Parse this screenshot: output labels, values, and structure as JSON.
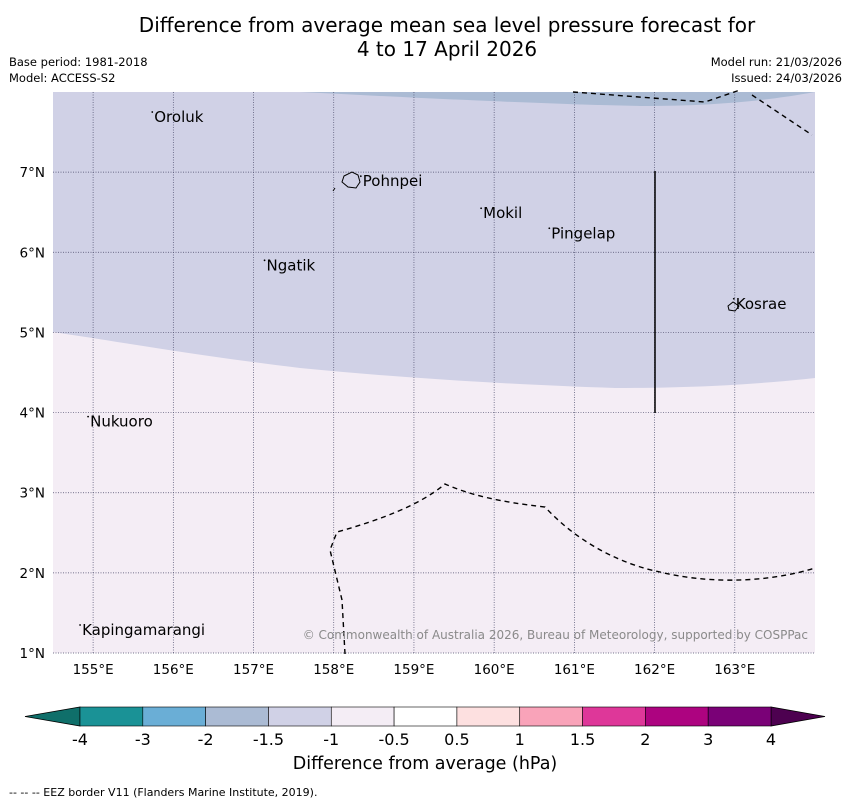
{
  "title_line1": "Difference from average mean sea level pressure forecast for",
  "title_line2": "4 to 17 April 2026",
  "base_period": "Base period: 1981-2018",
  "model": "Model: ACCESS-S2",
  "model_run": "Model run: 21/03/2026",
  "issued": "Issued: 24/03/2026",
  "copyright": "© Commonwealth of Australia 2026, Bureau of Meteorology, supported by COSPPac",
  "footnote": "--  --  -- EEZ border V11 (Flanders Marine Institute, 2019).",
  "map": {
    "lon_range": [
      154.5,
      164.0
    ],
    "lat_range": [
      1.0,
      8.0
    ],
    "lon_ticks": [
      "155°E",
      "156°E",
      "157°E",
      "158°E",
      "159°E",
      "160°E",
      "161°E",
      "162°E",
      "163°E"
    ],
    "lat_ticks": [
      "7°N",
      "6°N",
      "5°N",
      "4°N",
      "3°N",
      "2°N",
      "1°N"
    ],
    "places": [
      {
        "name": "Oroluk",
        "lon": 155.75,
        "lat": 7.65
      },
      {
        "name": "Pohnpei",
        "lon": 158.35,
        "lat": 6.85
      },
      {
        "name": "Mokil",
        "lon": 159.85,
        "lat": 6.45
      },
      {
        "name": "Pingelap",
        "lon": 160.7,
        "lat": 6.2
      },
      {
        "name": "Ngatik",
        "lon": 157.15,
        "lat": 5.8
      },
      {
        "name": "Kosrae",
        "lon": 163.0,
        "lat": 5.32
      },
      {
        "name": "Nukuoro",
        "lon": 154.95,
        "lat": 3.85
      },
      {
        "name": "Kapingamarangi",
        "lon": 154.85,
        "lat": 1.25
      }
    ],
    "fill_colors": {
      "minus_2_to_minus_1_5": "#abbbd4",
      "minus_1_5_to_minus_1": "#d0d1e6",
      "minus_1_to_minus_0_5": "#f4edf5"
    }
  },
  "colorbar": {
    "label": "Difference from average (hPa)",
    "ticks": [
      "-4",
      "-3",
      "-2",
      "-1.5",
      "-1",
      "-0.5",
      "0.5",
      "1",
      "1.5",
      "2",
      "3",
      "4"
    ],
    "colors": [
      "#1a9296",
      "#6aaed6",
      "#abbbd4",
      "#d0d1e6",
      "#f4edf5",
      "#ffffff",
      "#fde0e0",
      "#f9a3b9",
      "#de3799",
      "#ad0380",
      "#7a0177"
    ],
    "under_color": "#0f6f6a",
    "over_color": "#4d0150"
  }
}
